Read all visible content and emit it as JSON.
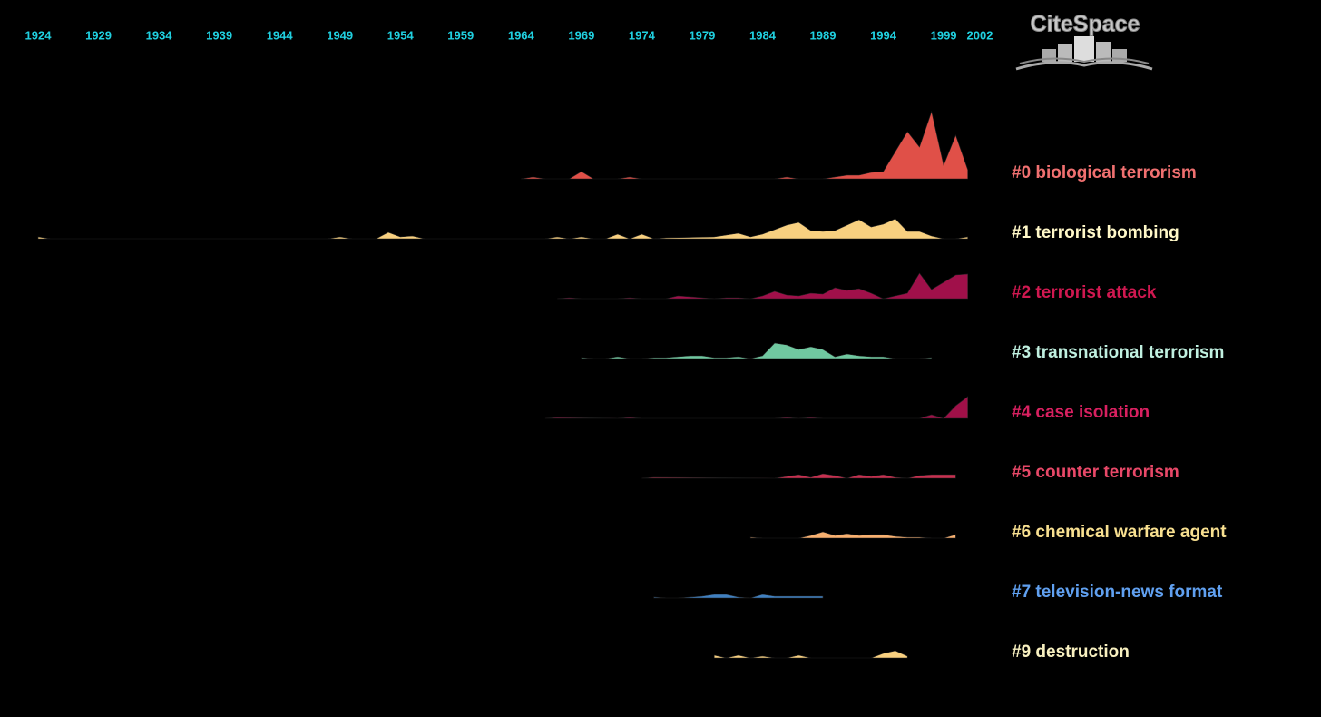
{
  "chart_data": {
    "type": "timeline",
    "logo": "CiteSpace",
    "xlim": [
      1924,
      2002
    ],
    "xticks": [
      1924,
      1929,
      1934,
      1939,
      1944,
      1949,
      1954,
      1959,
      1964,
      1969,
      1974,
      1979,
      1984,
      1989,
      1994,
      1999,
      2002
    ],
    "series": [
      {
        "name": "#0 biological terrorism",
        "color": "#e05048",
        "label_color": "#f07070",
        "x": [
          1964,
          1965,
          1966,
          1968,
          1969,
          1970,
          1972,
          1973,
          1974,
          1985,
          1986,
          1987,
          1989,
          1990,
          1991,
          1992,
          1993,
          1994,
          1995,
          1996,
          1997,
          1998,
          1999,
          2000,
          2001
        ],
        "values": [
          0,
          2,
          0,
          0,
          8,
          0,
          0,
          2,
          0,
          0,
          2,
          0,
          0,
          2,
          4,
          4,
          7,
          8,
          30,
          52,
          35,
          74,
          15,
          48,
          10
        ]
      },
      {
        "name": "#1 terrorist bombing",
        "color": "#f8d080",
        "label_color": "#fff8c8",
        "x": [
          1924,
          1925,
          1948,
          1949,
          1950,
          1952,
          1953,
          1954,
          1955,
          1956,
          1966,
          1967,
          1968,
          1969,
          1970,
          1971,
          1972,
          1973,
          1974,
          1975,
          1976,
          1980,
          1981,
          1982,
          1983,
          1984,
          1985,
          1986,
          1987,
          1988,
          1989,
          1990,
          1991,
          1992,
          1993,
          1994,
          1995,
          1996,
          1997,
          1998,
          1999,
          2000,
          2001
        ],
        "values": [
          2,
          0,
          0,
          2,
          0,
          0,
          7,
          2,
          3,
          0,
          0,
          2,
          0,
          2,
          0,
          0,
          5,
          0,
          5,
          0,
          1,
          2,
          4,
          6,
          2,
          5,
          10,
          15,
          18,
          9,
          8,
          9,
          15,
          21,
          13,
          16,
          22,
          8,
          8,
          3,
          0,
          0,
          2
        ]
      },
      {
        "name": "#2 terrorist attack",
        "color": "#a0104a",
        "label_color": "#d01850",
        "x": [
          1967,
          1968,
          1969,
          1972,
          1973,
          1974,
          1976,
          1977,
          1978,
          1979,
          1980,
          1981,
          1982,
          1983,
          1984,
          1985,
          1986,
          1987,
          1988,
          1989,
          1990,
          1991,
          1992,
          1993,
          1994,
          1995,
          1996,
          1997,
          1998,
          1999,
          2000,
          2001
        ],
        "values": [
          0,
          1,
          0,
          0,
          1,
          0,
          0,
          3,
          2,
          1,
          0,
          1,
          1,
          0,
          3,
          8,
          4,
          3,
          6,
          5,
          12,
          9,
          11,
          6,
          0,
          3,
          6,
          28,
          10,
          18,
          26,
          27
        ]
      },
      {
        "name": "#3 transnational terrorism",
        "color": "#70c8a0",
        "label_color": "#c0f0e0",
        "x": [
          1969,
          1970,
          1971,
          1972,
          1973,
          1974,
          1975,
          1976,
          1977,
          1978,
          1979,
          1980,
          1981,
          1982,
          1983,
          1984,
          1985,
          1986,
          1987,
          1988,
          1989,
          1990,
          1991,
          1992,
          1993,
          1994,
          1995,
          1996,
          1997,
          1998
        ],
        "values": [
          1,
          0,
          0,
          2,
          0,
          0,
          1,
          1,
          2,
          3,
          3,
          1,
          1,
          2,
          0,
          3,
          17,
          15,
          10,
          13,
          10,
          2,
          5,
          3,
          2,
          2,
          0,
          0,
          0,
          1
        ]
      },
      {
        "name": "#4 case isolation",
        "color": "#a01048",
        "label_color": "#d82060",
        "x": [
          1966,
          1967,
          1972,
          1973,
          1974,
          1985,
          1986,
          1987,
          1988,
          1989,
          1996,
          1997,
          1998,
          1999,
          2000,
          2001
        ],
        "values": [
          0,
          1,
          0,
          1,
          0,
          0,
          1,
          0,
          1,
          0,
          0,
          0,
          4,
          0,
          14,
          24
        ]
      },
      {
        "name": "#5 counter terrorism",
        "color": "#c83050",
        "label_color": "#e84868",
        "x": [
          1974,
          1975,
          1985,
          1986,
          1987,
          1988,
          1989,
          1990,
          1991,
          1992,
          1993,
          1994,
          1995,
          1996,
          1997,
          1998,
          1999,
          2000
        ],
        "values": [
          0,
          1,
          0,
          2,
          4,
          1,
          5,
          3,
          0,
          4,
          2,
          4,
          1,
          0,
          3,
          4,
          4,
          4
        ]
      },
      {
        "name": "#6 chemical warfare agent",
        "color": "#f8b070",
        "label_color": "#f8e090",
        "x": [
          1983,
          1984,
          1987,
          1988,
          1989,
          1990,
          1991,
          1992,
          1993,
          1994,
          1995,
          1996,
          1997,
          1998,
          1999,
          2000
        ],
        "values": [
          1,
          0,
          0,
          3,
          7,
          3,
          5,
          3,
          4,
          4,
          2,
          1,
          1,
          0,
          0,
          4
        ]
      },
      {
        "name": "#7 television-news format",
        "color": "#4080c0",
        "label_color": "#60a0f0",
        "x": [
          1975,
          1976,
          1977,
          1978,
          1979,
          1980,
          1981,
          1982,
          1983,
          1984,
          1985,
          1986,
          1987,
          1988,
          1989
        ],
        "values": [
          1,
          0,
          0,
          1,
          2,
          4,
          4,
          1,
          0,
          4,
          2,
          2,
          2,
          2,
          2
        ]
      },
      {
        "name": "#9 destruction",
        "color": "#f8d080",
        "label_color": "#f8f0c0",
        "x": [
          1980,
          1981,
          1982,
          1983,
          1984,
          1985,
          1986,
          1987,
          1988,
          1989,
          1993,
          1994,
          1995,
          1996
        ],
        "values": [
          3,
          0,
          3,
          0,
          2,
          0,
          0,
          3,
          0,
          0,
          0,
          5,
          8,
          2
        ]
      }
    ]
  }
}
